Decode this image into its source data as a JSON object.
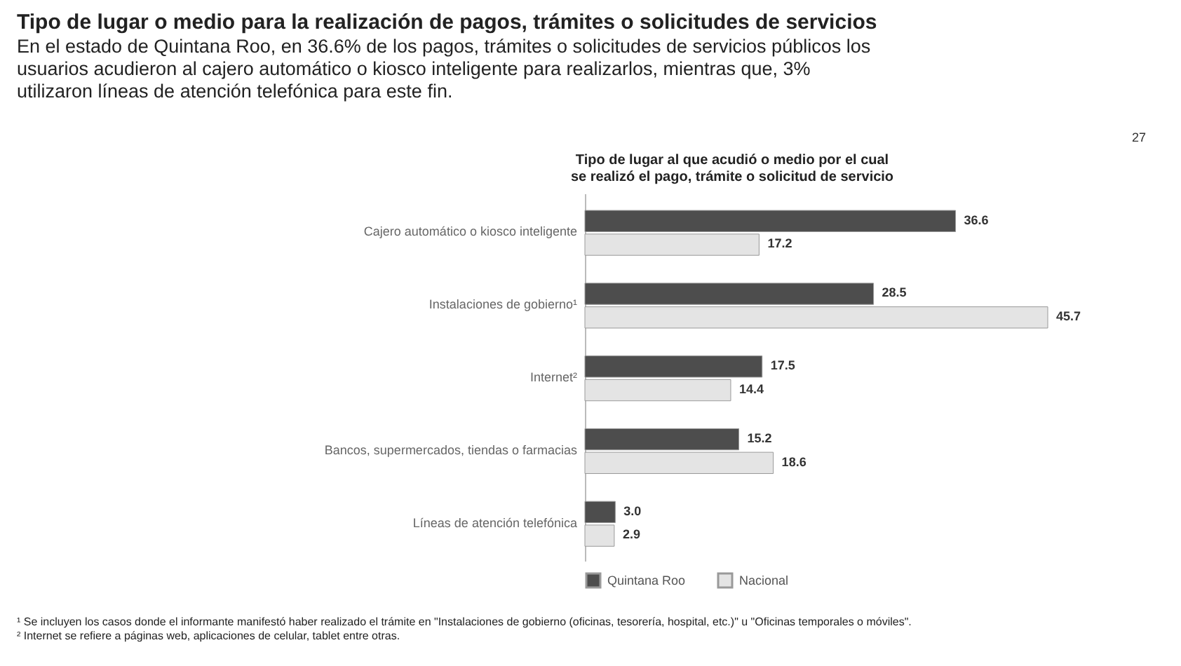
{
  "chart_data": {
    "type": "bar",
    "orientation": "horizontal",
    "title": "Tipo de lugar o medio para la realización de pagos, trámites o solicitudes de servicios",
    "subtitle": [
      "En el estado de Quintana Roo, en 36.6% de los pagos, trámites o solicitudes de servicios públicos los",
      "usuarios acudieron al cajero automático o kiosco inteligente para realizarlos, mientras que, 3%",
      "utilizaron líneas de atención telefónica para este fin."
    ],
    "categories": [
      "Cajero automático o kiosco inteligente",
      "Instalaciones de gobierno¹",
      "Internet²",
      "Bancos, supermercados, tiendas o farmacias",
      "Líneas de atención telefónica"
    ],
    "series": [
      {
        "name": "Quintana Roo",
        "color": "#4d4d4d",
        "values": [
          36.6,
          28.5,
          17.5,
          15.2,
          3.0
        ],
        "value_labels": [
          "36.6",
          "28.5",
          "17.5",
          "15.2",
          "3.0"
        ]
      },
      {
        "name": "Nacional",
        "color": "#e4e4e4",
        "values": [
          17.2,
          45.7,
          14.4,
          18.6,
          2.9
        ],
        "value_labels": [
          "17.2",
          "45.7",
          "14.4",
          "18.6",
          "2.9"
        ]
      }
    ],
    "legend": "bottom",
    "annotations": [
      "Tipo de lugar al que acudió o medio por el cual se realizó el pago, trámite o solicitud de servicio",
      "27",
      "¹ Se incluyen los casos donde el informante manifestó haber realizado el trámite en \"Instalaciones de gobierno (oficinas, tesorería, hospital, etc.)\" u \"Oficinas temporales o móviles\".",
      "² Internet se refiere a páginas web, aplicaciones de celular, tablet entre otras."
    ]
  }
}
